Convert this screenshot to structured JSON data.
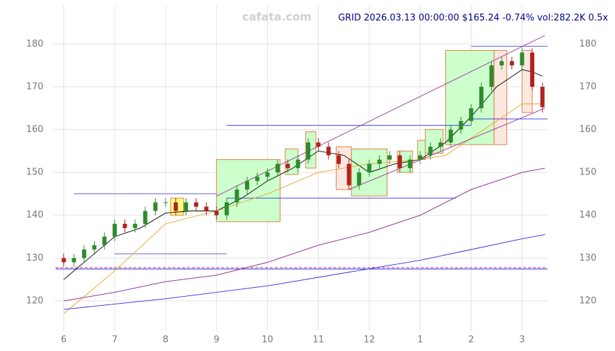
{
  "chart_data": {
    "type": "candlestick",
    "title": "GRID 2026.03.13 00:00:00 $165.24 -0.74% vol:282.2K 0.5x",
    "watermark": "cafata.com",
    "x": [
      6.0,
      6.2,
      6.4,
      6.6,
      6.8,
      7.0,
      7.2,
      7.4,
      7.6,
      7.8,
      8.0,
      8.2,
      8.4,
      8.6,
      8.8,
      9.0,
      9.2,
      9.4,
      9.6,
      9.8,
      10.0,
      10.2,
      10.4,
      10.6,
      10.8,
      11.0,
      11.2,
      11.4,
      11.6,
      11.8,
      12.0,
      12.2,
      12.4,
      12.6,
      12.8,
      13.0,
      13.2,
      13.4,
      13.6,
      13.8,
      14.0,
      14.2,
      14.4,
      14.6,
      14.8,
      15.0,
      15.2,
      15.4
    ],
    "open": [
      130,
      129,
      130,
      132,
      133,
      135,
      138,
      137,
      138,
      141,
      143,
      143,
      141,
      143,
      142,
      141,
      140,
      143,
      146,
      148,
      149,
      150,
      152,
      151,
      153,
      157,
      156,
      154,
      152,
      147,
      150,
      152,
      153,
      154,
      151,
      153,
      154,
      156,
      157,
      160,
      162,
      165,
      170,
      175,
      176,
      175,
      178,
      170
    ],
    "high": [
      131,
      131,
      133,
      134,
      136,
      139,
      139,
      139,
      142,
      144,
      144,
      144,
      144,
      144,
      143,
      142,
      144,
      147,
      149,
      150,
      151,
      153,
      153,
      154,
      158,
      158,
      157,
      155,
      153,
      151,
      153,
      154,
      155,
      155,
      154,
      155,
      157,
      158,
      161,
      163,
      166,
      171,
      176,
      177,
      177,
      179,
      179,
      171
    ],
    "low": [
      128,
      128,
      129,
      131,
      132,
      134,
      136,
      136,
      137,
      140,
      142,
      140,
      140,
      141,
      140,
      139,
      139,
      142,
      145,
      147,
      148,
      149,
      150,
      150,
      152,
      155,
      153,
      151,
      146,
      146,
      149,
      151,
      152,
      150,
      150,
      152,
      153,
      155,
      156,
      159,
      161,
      164,
      169,
      174,
      174,
      174,
      169,
      164
    ],
    "close": [
      129,
      130,
      132,
      133,
      135,
      138,
      137,
      138,
      141,
      143,
      143,
      141,
      143,
      142,
      141,
      140,
      143,
      146,
      148,
      149,
      150,
      152,
      151,
      153,
      157,
      156,
      154,
      152,
      147,
      150,
      152,
      153,
      154,
      151,
      153,
      154,
      156,
      157,
      160,
      162,
      165,
      170,
      175,
      176,
      175,
      178,
      170,
      165.24
    ],
    "up_color": "#2e8b2e",
    "down_color": "#b22222",
    "xlim": [
      5.8,
      15.5
    ],
    "ylim": [
      113,
      188
    ],
    "xticks": [
      6,
      7,
      8,
      9,
      10,
      11,
      12,
      {
        "value": 13,
        "label": "1"
      },
      {
        "value": 14,
        "label": "2"
      },
      {
        "value": 15,
        "label": "3"
      }
    ],
    "yticks": [
      120,
      130,
      140,
      150,
      160,
      170,
      180
    ],
    "grid": true,
    "overlays": [
      {
        "color": "#000000",
        "x": [
          6.0,
          6.5,
          7,
          7.5,
          8,
          8.5,
          9,
          9.5,
          10,
          10.5,
          11,
          11.5,
          12,
          12.5,
          13,
          13.5,
          14,
          14.5,
          15,
          15.2,
          15.4
        ],
        "values": [
          125,
          130,
          135,
          137,
          140.5,
          141,
          141,
          144,
          148,
          151,
          155,
          154,
          150,
          152,
          153,
          157,
          163,
          170,
          174,
          173.5,
          172.5
        ]
      },
      {
        "color": "#f0a020",
        "x": [
          6,
          7,
          8,
          9,
          10,
          11,
          12,
          13,
          13.5,
          14,
          14.5,
          15,
          15.4
        ],
        "values": [
          117,
          127,
          138,
          141,
          145,
          150,
          152,
          153,
          154,
          158,
          162,
          166,
          166
        ]
      },
      {
        "color": "#8b1a8b",
        "x": [
          6,
          7,
          8,
          9,
          10,
          11,
          12,
          13,
          14,
          15,
          15.45
        ],
        "values": [
          120,
          122,
          124.5,
          126,
          129,
          133,
          136,
          140,
          146,
          150,
          151
        ]
      },
      {
        "color": "#2a2ae0",
        "x": [
          6,
          8,
          10,
          12,
          13,
          14,
          15,
          15.45
        ],
        "values": [
          118,
          120.5,
          123.5,
          127.5,
          129.5,
          132,
          134.5,
          135.5
        ]
      },
      {
        "color": "#9b309b",
        "x": [
          9.0,
          15.45
        ],
        "values": [
          144.5,
          182
        ]
      },
      {
        "color": "#9b309b",
        "x": [
          11.6,
          15.45
        ],
        "values": [
          146,
          165
        ]
      }
    ],
    "levels": [
      {
        "color": "#2a2ae0",
        "x": [
          6.2,
          9.0
        ],
        "value": 145
      },
      {
        "color": "#2a2ae0",
        "x": [
          7.0,
          9.2
        ],
        "value": 131
      },
      {
        "color": "#2a2ae0",
        "x": [
          9.2,
          14.0
        ],
        "value": 161
      },
      {
        "color": "#2a2ae0",
        "x": [
          9.2,
          13.7
        ],
        "value": 144
      },
      {
        "color": "#2a2ae0",
        "x": [
          14.0,
          15.5
        ],
        "value": 179.5
      },
      {
        "color": "#2a2ae0",
        "x": [
          14.0,
          15.5
        ],
        "value": 162.5
      }
    ],
    "zones": [
      {
        "color": "#ccffcc",
        "x": [
          9.0,
          10.25
        ],
        "y": [
          138.5,
          153
        ]
      },
      {
        "color": "#ccffcc",
        "x": [
          10.35,
          10.6
        ],
        "y": [
          149.5,
          155.5
        ]
      },
      {
        "color": "#ccffcc",
        "x": [
          10.75,
          10.95
        ],
        "y": [
          151,
          159.5
        ]
      },
      {
        "color": "#fde8e0",
        "x": [
          11.35,
          11.65
        ],
        "y": [
          146,
          156
        ]
      },
      {
        "color": "#ccffcc",
        "x": [
          11.65,
          12.35
        ],
        "y": [
          144.5,
          155.5
        ]
      },
      {
        "color": "#ccffcc",
        "x": [
          12.55,
          12.85
        ],
        "y": [
          150,
          155
        ]
      },
      {
        "color": "#ccffcc",
        "x": [
          12.95,
          13.1
        ],
        "y": [
          153,
          157.5
        ]
      },
      {
        "color": "#ccffcc",
        "x": [
          13.1,
          13.45
        ],
        "y": [
          154.5,
          160
        ]
      },
      {
        "color": "#ccffcc",
        "x": [
          13.5,
          14.45
        ],
        "y": [
          156.5,
          178.5
        ]
      },
      {
        "color": "#fde8e0",
        "x": [
          14.45,
          14.7
        ],
        "y": [
          156.5,
          178.5
        ]
      },
      {
        "color": "#fde8e0",
        "x": [
          15.0,
          15.2
        ],
        "y": [
          164,
          178.5
        ]
      },
      {
        "color": "#ffff80",
        "x": [
          8.1,
          8.35
        ],
        "y": [
          140,
          144
        ]
      }
    ]
  }
}
